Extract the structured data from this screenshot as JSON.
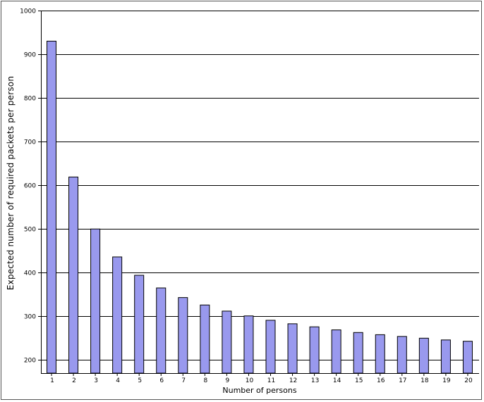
{
  "chart_data": {
    "type": "bar",
    "title": "",
    "xlabel": "Number of persons",
    "ylabel": "Expected number of required packets per person",
    "categories": [
      "1",
      "2",
      "3",
      "4",
      "5",
      "6",
      "7",
      "8",
      "9",
      "10",
      "11",
      "12",
      "13",
      "14",
      "15",
      "16",
      "17",
      "18",
      "19",
      "20"
    ],
    "values": [
      930,
      619,
      500,
      436,
      394,
      365,
      343,
      326,
      312,
      301,
      291,
      283,
      276,
      269,
      263,
      258,
      254,
      250,
      246,
      243
    ],
    "ylim": [
      170,
      1000
    ],
    "yticks": [
      200,
      300,
      400,
      500,
      600,
      700,
      800,
      900,
      1000
    ],
    "grid": true,
    "legend": "none",
    "bar_color": "#9999ee",
    "bar_edge_color": "#000000"
  }
}
